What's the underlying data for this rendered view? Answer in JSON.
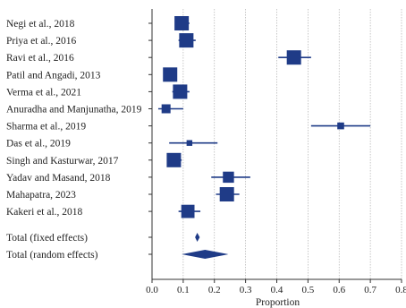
{
  "chart_data": {
    "type": "forest",
    "xlabel": "Proportion",
    "xlim": [
      0.0,
      0.8
    ],
    "xticks": [
      0.0,
      0.1,
      0.2,
      0.3,
      0.4,
      0.5,
      0.6,
      0.7,
      0.8
    ],
    "xtick_labels": [
      "0.0",
      "0.1",
      "0.2",
      "0.3",
      "0.4",
      "0.5",
      "0.6",
      "0.7",
      "0.8"
    ],
    "grid": "vertical dotted",
    "colors": {
      "marker": "#1f3b87",
      "text": "#222222",
      "frame": "#333333"
    },
    "studies": [
      {
        "label": "Negi et al., 2018",
        "estimate": 0.095,
        "ci": [
          0.075,
          0.12
        ],
        "weight": 2
      },
      {
        "label": "Priya et al., 2016",
        "estimate": 0.11,
        "ci": [
          0.085,
          0.14
        ],
        "weight": 2
      },
      {
        "label": "Ravi et al., 2016",
        "estimate": 0.455,
        "ci": [
          0.405,
          0.51
        ],
        "weight": 2
      },
      {
        "label": "Patil and Angadi, 2013",
        "estimate": 0.058,
        "ci": [
          0.04,
          0.08
        ],
        "weight": 2
      },
      {
        "label": "Verma et al., 2021",
        "estimate": 0.09,
        "ci": [
          0.065,
          0.12
        ],
        "weight": 2
      },
      {
        "label": "Anuradha and Manjunatha, 2019",
        "estimate": 0.045,
        "ci": [
          0.02,
          0.1
        ],
        "weight": 1
      },
      {
        "label": "Sharma et al., 2019",
        "estimate": 0.605,
        "ci": [
          0.51,
          0.7
        ],
        "weight": 0.6
      },
      {
        "label": "Das et al., 2019",
        "estimate": 0.12,
        "ci": [
          0.055,
          0.21
        ],
        "weight": 0.4
      },
      {
        "label": "Singh and Kasturwar, 2017",
        "estimate": 0.07,
        "ci": [
          0.05,
          0.095
        ],
        "weight": 2
      },
      {
        "label": "Yadav and Masand, 2018",
        "estimate": 0.245,
        "ci": [
          0.19,
          0.315
        ],
        "weight": 1.4
      },
      {
        "label": "Mahapatra, 2023",
        "estimate": 0.24,
        "ci": [
          0.205,
          0.28
        ],
        "weight": 2
      },
      {
        "label": "Kakeri et al., 2018",
        "estimate": 0.115,
        "ci": [
          0.085,
          0.155
        ],
        "weight": 1.8
      }
    ],
    "summaries": [
      {
        "label": "Total (fixed effects)",
        "estimate": 0.145,
        "ci": [
          0.138,
          0.153
        ]
      },
      {
        "label": "Total (random effects)",
        "estimate": 0.17,
        "ci": [
          0.095,
          0.245
        ]
      }
    ]
  }
}
